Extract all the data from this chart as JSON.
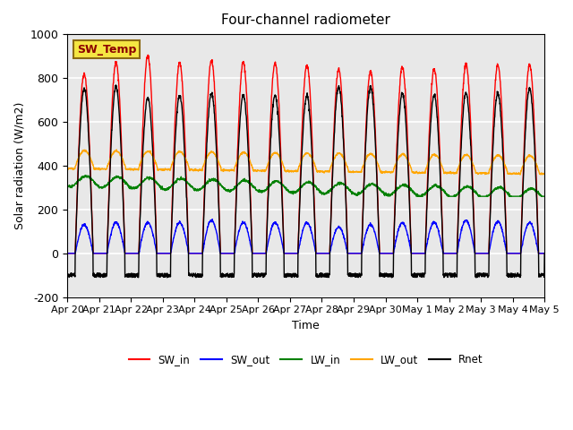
{
  "title": "Four-channel radiometer",
  "xlabel": "Time",
  "ylabel": "Solar radiation (W/m2)",
  "ylim": [
    -200,
    1000
  ],
  "n_days": 15,
  "xtick_labels": [
    "Apr 20",
    "Apr 21",
    "Apr 22",
    "Apr 23",
    "Apr 24",
    "Apr 25",
    "Apr 26",
    "Apr 27",
    "Apr 28",
    "Apr 29",
    "Apr 30",
    "May 1",
    "May 2",
    "May 3",
    "May 4",
    "May 5"
  ],
  "legend_entries": [
    "SW_in",
    "SW_out",
    "LW_in",
    "LW_out",
    "Rnet"
  ],
  "legend_colors": [
    "red",
    "blue",
    "green",
    "orange",
    "black"
  ],
  "SW_temp_box_color": "#f5e642",
  "SW_temp_text_color": "#8b0000",
  "SW_temp_border_color": "#8b6914",
  "bg_color": "#e8e8e8",
  "grid_color": "white",
  "sw_in_peaks": [
    820,
    870,
    900,
    870,
    880,
    870,
    870,
    860,
    840,
    830,
    850,
    840,
    860,
    860,
    860
  ],
  "sw_out_peaks": [
    130,
    140,
    140,
    140,
    150,
    140,
    140,
    140,
    120,
    130,
    140,
    140,
    150,
    145,
    140
  ],
  "rnet_peaks": [
    750,
    760,
    710,
    720,
    730,
    720,
    720,
    720,
    760,
    760,
    730,
    720,
    730,
    730,
    750
  ]
}
